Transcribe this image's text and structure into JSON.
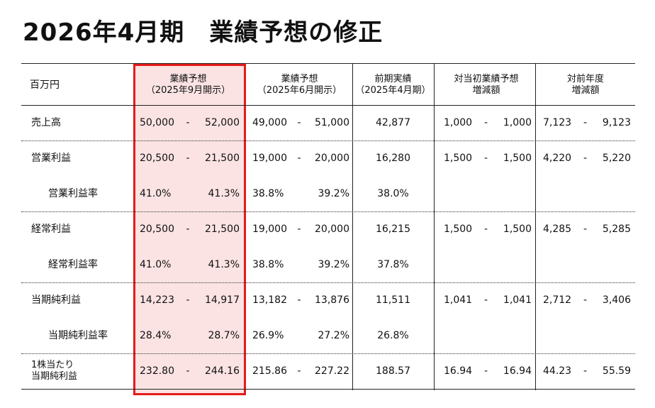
{
  "title": "2026年4月期　業績予想の修正",
  "table": {
    "header": [
      "百万円",
      "業績予想\n（2025年9月開示）",
      "業績予想\n（2025年6月開示）",
      "前期実績\n（2025年4月期）",
      "対当初業績予想\n増減額",
      "対前年度\n増減額"
    ],
    "rows": [
      {
        "label": "売上高",
        "cells": [
          {
            "low": "50,000",
            "sep": "-",
            "high": "52,000"
          },
          {
            "low": "49,000",
            "sep": "-",
            "high": "51,000"
          },
          {
            "value": "42,877"
          },
          {
            "low": "1,000",
            "sep": "-",
            "high": "1,000"
          },
          {
            "low": "7,123",
            "sep": "-",
            "high": "9,123"
          }
        ]
      },
      {
        "label": "営業利益",
        "cells": [
          {
            "low": "20,500",
            "sep": "-",
            "high": "21,500"
          },
          {
            "low": "19,000",
            "sep": "-",
            "high": "20,000"
          },
          {
            "value": "16,280"
          },
          {
            "low": "1,500",
            "sep": "-",
            "high": "1,500"
          },
          {
            "low": "4,220",
            "sep": "-",
            "high": "5,220"
          }
        ]
      },
      {
        "label": "営業利益率",
        "cells": [
          {
            "low": "41.0%",
            "high": "41.3%"
          },
          {
            "low": "38.8%",
            "high": "39.2%"
          },
          {
            "value": "38.0%"
          }
        ]
      },
      {
        "label": "経常利益",
        "cells": [
          {
            "low": "20,500",
            "sep": "-",
            "high": "21,500"
          },
          {
            "low": "19,000",
            "sep": "-",
            "high": "20,000"
          },
          {
            "value": "16,215"
          },
          {
            "low": "1,500",
            "sep": "-",
            "high": "1,500"
          },
          {
            "low": "4,285",
            "sep": "-",
            "high": "5,285"
          }
        ]
      },
      {
        "label": "経常利益率",
        "cells": [
          {
            "low": "41.0%",
            "high": "41.3%"
          },
          {
            "low": "38.8%",
            "high": "39.2%"
          },
          {
            "value": "37.8%"
          }
        ]
      },
      {
        "label": "当期純利益",
        "cells": [
          {
            "low": "14,223",
            "sep": "-",
            "high": "14,917"
          },
          {
            "low": "13,182",
            "sep": "-",
            "high": "13,876"
          },
          {
            "value": "11,511"
          },
          {
            "low": "1,041",
            "sep": "-",
            "high": "1,041"
          },
          {
            "low": "2,712",
            "sep": "-",
            "high": "3,406"
          }
        ]
      },
      {
        "label": "当期純利益率",
        "cells": [
          {
            "low": "28.4%",
            "high": "28.7%"
          },
          {
            "low": "26.9%",
            "high": "27.2%"
          },
          {
            "value": "26.8%"
          }
        ]
      },
      {
        "label": "1株当たり\n当期純利益",
        "cells": [
          {
            "low": "232.80",
            "sep": "-",
            "high": "244.16"
          },
          {
            "low": "215.86",
            "sep": "-",
            "high": "227.22"
          },
          {
            "value": "188.57"
          },
          {
            "low": "16.94",
            "sep": "-",
            "high": "16.94"
          },
          {
            "low": "44.23",
            "sep": "-",
            "high": "55.59"
          }
        ]
      }
    ]
  }
}
